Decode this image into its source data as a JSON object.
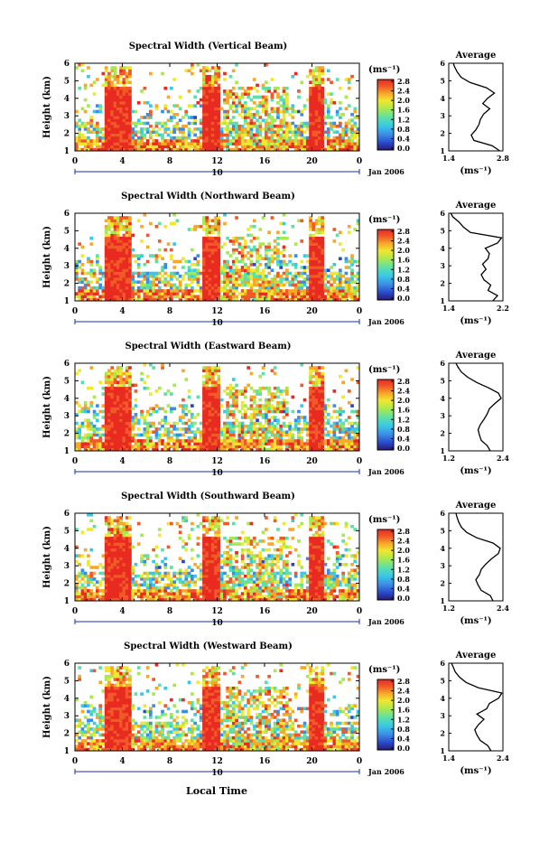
{
  "figure": {
    "xlabel_bottom": "Local Time",
    "date_label": "Jan 2006",
    "date_tick_label": "10",
    "unit_label": "(ms⁻¹)",
    "colorbar_ticks": [
      "0.0",
      "0.4",
      "0.8",
      "1.2",
      "1.6",
      "2.0",
      "2.4",
      "2.8"
    ]
  },
  "chart_data": [
    {
      "type": "heatmap",
      "title": "Spectral Width (Vertical Beam)",
      "ylabel": "Height (km)",
      "xticks": [
        "0",
        "4",
        "8",
        "12",
        "16",
        "20",
        "0"
      ],
      "yticks": [
        "1",
        "2",
        "3",
        "4",
        "5",
        "6"
      ],
      "xlim": [
        0,
        24
      ],
      "ylim": [
        1,
        6
      ],
      "colorbar": {
        "label": "(ms⁻¹)",
        "range": [
          0.0,
          2.8
        ],
        "ticks": [
          "0.0",
          "0.4",
          "0.8",
          "1.2",
          "1.6",
          "2.0",
          "2.4",
          "2.8"
        ]
      },
      "high_width_blocks_hours": [
        [
          2.4,
          4.8
        ],
        [
          10.7,
          12.2
        ],
        [
          19.8,
          21.0
        ]
      ],
      "profile": {
        "title": "Average",
        "xlabel": "(ms⁻¹)",
        "xticks": [
          "1.4",
          "2.8"
        ],
        "xlim": [
          1.4,
          2.8
        ],
        "ylim": [
          1,
          6
        ],
        "height": [
          1.0,
          1.3,
          1.6,
          1.9,
          2.2,
          2.5,
          2.8,
          3.1,
          3.4,
          3.7,
          4.0,
          4.3,
          4.6,
          4.9,
          5.2,
          5.5,
          5.8,
          6.0
        ],
        "values": [
          2.72,
          2.52,
          2.05,
          1.98,
          2.1,
          2.18,
          2.22,
          2.3,
          2.46,
          2.28,
          2.4,
          2.58,
          2.38,
          1.95,
          1.72,
          1.62,
          1.55,
          1.52
        ]
      }
    },
    {
      "type": "heatmap",
      "title": "Spectral Width (Northward Beam)",
      "ylabel": "Height (km)",
      "xticks": [
        "0",
        "4",
        "8",
        "12",
        "16",
        "20",
        "0"
      ],
      "yticks": [
        "1",
        "2",
        "3",
        "4",
        "5",
        "6"
      ],
      "xlim": [
        0,
        24
      ],
      "ylim": [
        1,
        6
      ],
      "colorbar": {
        "label": "(ms⁻¹)",
        "range": [
          0.0,
          2.8
        ],
        "ticks": [
          "0.0",
          "0.4",
          "0.8",
          "1.2",
          "1.6",
          "2.0",
          "2.4",
          "2.8"
        ]
      },
      "high_width_blocks_hours": [
        [
          2.4,
          4.8
        ],
        [
          10.7,
          12.2
        ],
        [
          19.8,
          21.0
        ]
      ],
      "profile": {
        "title": "Average",
        "xlabel": "(ms⁻¹)",
        "xticks": [
          "1.4",
          "2.2"
        ],
        "xlim": [
          1.4,
          2.2
        ],
        "ylim": [
          1,
          6
        ],
        "height": [
          1.0,
          1.3,
          1.6,
          1.9,
          2.2,
          2.5,
          2.8,
          3.1,
          3.4,
          3.7,
          4.0,
          4.3,
          4.6,
          4.9,
          5.2,
          5.5,
          5.8,
          6.0
        ],
        "values": [
          2.05,
          2.12,
          1.98,
          2.02,
          1.92,
          1.88,
          1.95,
          1.9,
          1.98,
          2.0,
          1.94,
          2.12,
          2.18,
          1.72,
          1.62,
          1.55,
          1.46,
          1.43
        ]
      }
    },
    {
      "type": "heatmap",
      "title": "Spectral Width (Eastward Beam)",
      "ylabel": "Height (km)",
      "xticks": [
        "0",
        "4",
        "8",
        "12",
        "16",
        "20",
        "0"
      ],
      "yticks": [
        "1",
        "2",
        "3",
        "4",
        "5",
        "6"
      ],
      "xlim": [
        0,
        24
      ],
      "ylim": [
        1,
        6
      ],
      "colorbar": {
        "label": "(ms⁻¹)",
        "range": [
          0.0,
          2.8
        ],
        "ticks": [
          "0.0",
          "0.4",
          "0.8",
          "1.2",
          "1.6",
          "2.0",
          "2.4",
          "2.8"
        ]
      },
      "high_width_blocks_hours": [
        [
          2.4,
          4.8
        ],
        [
          10.7,
          12.2
        ],
        [
          19.8,
          21.0
        ]
      ],
      "profile": {
        "title": "Average",
        "xlabel": "(ms⁻¹)",
        "xticks": [
          "1.2",
          "2.4"
        ],
        "xlim": [
          1.2,
          2.4
        ],
        "ylim": [
          1,
          6
        ],
        "height": [
          1.0,
          1.3,
          1.6,
          1.9,
          2.2,
          2.5,
          2.8,
          3.1,
          3.4,
          3.7,
          4.0,
          4.3,
          4.6,
          4.9,
          5.2,
          5.5,
          5.8,
          6.0
        ],
        "values": [
          2.12,
          2.05,
          1.92,
          1.88,
          1.85,
          1.9,
          1.98,
          2.05,
          2.1,
          2.22,
          2.36,
          2.3,
          2.08,
          1.82,
          1.62,
          1.48,
          1.4,
          1.36
        ]
      }
    },
    {
      "type": "heatmap",
      "title": "Spectral Width (Southward Beam)",
      "ylabel": "Height (km)",
      "xticks": [
        "0",
        "4",
        "8",
        "12",
        "16",
        "20",
        "0"
      ],
      "yticks": [
        "1",
        "2",
        "3",
        "4",
        "5",
        "6"
      ],
      "xlim": [
        0,
        24
      ],
      "ylim": [
        1,
        6
      ],
      "colorbar": {
        "label": "(ms⁻¹)",
        "range": [
          0.0,
          2.8
        ],
        "ticks": [
          "0.0",
          "0.4",
          "0.8",
          "1.2",
          "1.6",
          "2.0",
          "2.4",
          "2.8"
        ]
      },
      "high_width_blocks_hours": [
        [
          2.4,
          4.8
        ],
        [
          10.7,
          12.2
        ],
        [
          19.8,
          21.0
        ]
      ],
      "profile": {
        "title": "Average",
        "xlabel": "(ms⁻¹)",
        "xticks": [
          "1.2",
          "2.4"
        ],
        "xlim": [
          1.2,
          2.4
        ],
        "ylim": [
          1,
          6
        ],
        "height": [
          1.0,
          1.3,
          1.6,
          1.9,
          2.2,
          2.5,
          2.8,
          3.1,
          3.4,
          3.7,
          4.0,
          4.3,
          4.6,
          4.9,
          5.2,
          5.5,
          5.8,
          6.0
        ],
        "values": [
          2.18,
          2.12,
          1.92,
          1.85,
          1.8,
          1.88,
          1.92,
          2.02,
          2.15,
          2.3,
          2.34,
          2.18,
          1.82,
          1.6,
          1.48,
          1.42,
          1.38,
          1.36
        ]
      }
    },
    {
      "type": "heatmap",
      "title": "Spectral Width (Westward Beam)",
      "ylabel": "Height (km)",
      "xticks": [
        "0",
        "4",
        "8",
        "12",
        "16",
        "20",
        "0"
      ],
      "yticks": [
        "1",
        "2",
        "3",
        "4",
        "5",
        "6"
      ],
      "xlim": [
        0,
        24
      ],
      "ylim": [
        1,
        6
      ],
      "colorbar": {
        "label": "(ms⁻¹)",
        "range": [
          0.0,
          2.8
        ],
        "ticks": [
          "0.0",
          "0.4",
          "0.8",
          "1.2",
          "1.6",
          "2.0",
          "2.4",
          "2.8"
        ]
      },
      "high_width_blocks_hours": [
        [
          2.4,
          4.8
        ],
        [
          10.7,
          12.2
        ],
        [
          19.8,
          21.0
        ]
      ],
      "profile": {
        "title": "Average",
        "xlabel": "(ms⁻¹)",
        "xticks": [
          "1.4",
          "2.4"
        ],
        "xlim": [
          1.4,
          2.4
        ],
        "ylim": [
          1,
          6
        ],
        "height": [
          1.0,
          1.3,
          1.6,
          1.9,
          2.2,
          2.5,
          2.8,
          3.1,
          3.4,
          3.7,
          4.0,
          4.3,
          4.6,
          4.9,
          5.2,
          5.5,
          5.8,
          6.0
        ],
        "values": [
          2.18,
          2.12,
          1.98,
          1.92,
          1.88,
          1.95,
          2.05,
          1.92,
          2.1,
          2.15,
          2.32,
          2.38,
          1.95,
          1.72,
          1.6,
          1.52,
          1.48,
          1.45
        ]
      }
    }
  ]
}
